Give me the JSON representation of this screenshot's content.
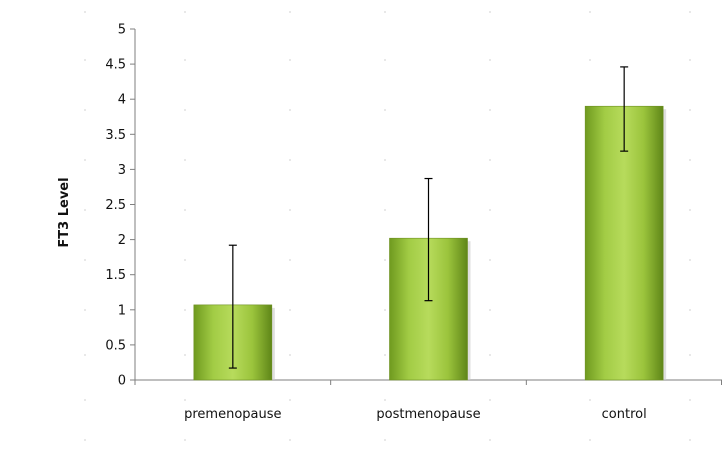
{
  "chart_data": {
    "type": "bar",
    "categories": [
      "premenopause",
      "postmenopause",
      "control"
    ],
    "values": [
      1.07,
      2.02,
      3.9
    ],
    "error_low": [
      0.17,
      1.13,
      3.26
    ],
    "error_high": [
      1.92,
      2.87,
      4.46
    ],
    "title": "",
    "xlabel": "",
    "ylabel": "FT3  Level",
    "ylim": [
      0,
      5
    ],
    "yticks": [
      0,
      0.5,
      1,
      1.5,
      2,
      2.5,
      3,
      3.5,
      4,
      4.5,
      5
    ],
    "grid": false,
    "legend": "none",
    "bar_color": "#8dbb2e"
  }
}
